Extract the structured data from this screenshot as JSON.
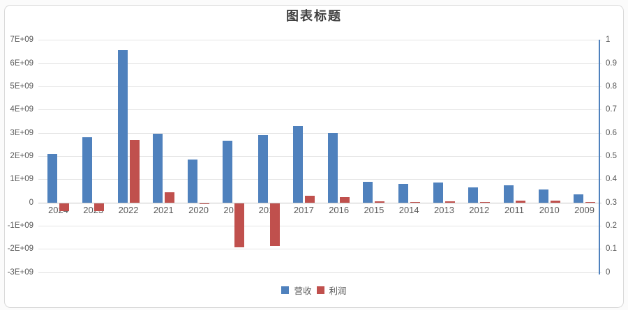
{
  "chart_data": {
    "type": "bar",
    "title": "图表标题",
    "categories": [
      "2024",
      "2023",
      "2022",
      "2021",
      "2020",
      "2019",
      "2018",
      "2017",
      "2016",
      "2015",
      "2014",
      "2013",
      "2012",
      "2011",
      "2010",
      "2009"
    ],
    "series": [
      {
        "id": "revenue",
        "name": "营收",
        "color": "#4f81bd",
        "axis": "left",
        "values": [
          2100000000.0,
          2800000000.0,
          6550000000.0,
          2950000000.0,
          1850000000.0,
          2650000000.0,
          2900000000.0,
          3300000000.0,
          3000000000.0,
          900000000.0,
          800000000.0,
          850000000.0,
          650000000.0,
          750000000.0,
          550000000.0,
          350000000.0
        ]
      },
      {
        "id": "profit",
        "name": "利润",
        "color": "#c0504d",
        "axis": "left",
        "values": [
          -350000000.0,
          -350000000.0,
          2700000000.0,
          450000000.0,
          -50000000.0,
          -1900000000.0,
          -1850000000.0,
          300000000.0,
          220000000.0,
          40000000.0,
          30000000.0,
          40000000.0,
          10000000.0,
          70000000.0,
          80000000.0,
          10000000.0
        ]
      }
    ],
    "left_axis": {
      "min": -3000000000.0,
      "max": 7000000000.0,
      "ticks": [
        {
          "label": "7E+09",
          "value": 7000000000.0
        },
        {
          "label": "6E+09",
          "value": 6000000000.0
        },
        {
          "label": "5E+09",
          "value": 5000000000.0
        },
        {
          "label": "4E+09",
          "value": 4000000000.0
        },
        {
          "label": "3E+09",
          "value": 3000000000.0
        },
        {
          "label": "2E+09",
          "value": 2000000000.0
        },
        {
          "label": "1E+09",
          "value": 1000000000.0
        },
        {
          "label": "0",
          "value": 0
        },
        {
          "label": "-1E+09",
          "value": -1000000000.0
        },
        {
          "label": "-2E+09",
          "value": -2000000000.0
        },
        {
          "label": "-3E+09",
          "value": -3000000000.0
        }
      ]
    },
    "right_axis": {
      "min": 0,
      "max": 1,
      "ticks": [
        {
          "label": "1",
          "value": 1.0
        },
        {
          "label": "0.9",
          "value": 0.9
        },
        {
          "label": "0.8",
          "value": 0.8
        },
        {
          "label": "0.7",
          "value": 0.7
        },
        {
          "label": "0.6",
          "value": 0.6
        },
        {
          "label": "0.5",
          "value": 0.5
        },
        {
          "label": "0.4",
          "value": 0.4
        },
        {
          "label": "0.3",
          "value": 0.3
        },
        {
          "label": "0.2",
          "value": 0.2
        },
        {
          "label": "0.1",
          "value": 0.1
        },
        {
          "label": "0",
          "value": 0.0
        }
      ]
    },
    "legend_position": "bottom",
    "grid": true,
    "colors": {
      "grid": "#e4e4e4",
      "zero_line": "#c6c6c6",
      "axis_text": "#595959",
      "title_text": "#404040",
      "secondary_axis_line": "#4f81bd",
      "card_border": "#d8d8d8"
    }
  }
}
